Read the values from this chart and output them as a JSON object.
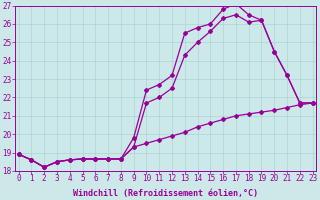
{
  "bg_color": "#cce8e8",
  "grid_color": "#aad4d4",
  "line_color": "#990099",
  "xlim_min": -0.3,
  "xlim_max": 23.3,
  "ylim_min": 18,
  "ylim_max": 27,
  "yticks": [
    18,
    19,
    20,
    21,
    22,
    23,
    24,
    25,
    26,
    27
  ],
  "xticks": [
    0,
    1,
    2,
    3,
    4,
    5,
    6,
    7,
    8,
    9,
    10,
    11,
    12,
    13,
    14,
    15,
    16,
    17,
    18,
    19,
    20,
    21,
    22,
    23
  ],
  "xlabel": "Windchill (Refroidissement éolien,°C)",
  "s1_x": [
    0,
    1,
    2,
    3,
    4,
    5,
    6,
    7,
    8,
    9,
    10,
    11,
    12,
    13,
    14,
    15,
    16,
    17,
    18,
    19,
    20,
    21,
    22,
    23
  ],
  "s1_y": [
    18.9,
    18.6,
    18.2,
    18.5,
    18.6,
    18.65,
    18.65,
    18.65,
    18.65,
    19.8,
    22.4,
    22.7,
    23.2,
    25.5,
    25.8,
    26.0,
    26.8,
    27.1,
    26.5,
    26.2,
    24.5,
    23.2,
    21.7,
    21.7
  ],
  "s2_x": [
    0,
    1,
    2,
    3,
    4,
    5,
    6,
    7,
    8,
    9,
    10,
    11,
    12,
    13,
    14,
    15,
    16,
    17,
    18,
    19,
    20,
    21,
    22,
    23
  ],
  "s2_y": [
    18.9,
    18.6,
    18.2,
    18.5,
    18.6,
    18.65,
    18.65,
    18.65,
    18.65,
    19.3,
    21.7,
    22.0,
    22.5,
    24.3,
    25.0,
    25.6,
    26.3,
    26.5,
    26.1,
    26.2,
    24.5,
    23.2,
    21.7,
    21.7
  ],
  "s3_x": [
    0,
    1,
    2,
    3,
    4,
    5,
    6,
    7,
    8,
    9,
    10,
    11,
    12,
    13,
    14,
    15,
    16,
    17,
    18,
    19,
    20,
    21,
    22,
    23
  ],
  "s3_y": [
    18.9,
    18.6,
    18.2,
    18.5,
    18.6,
    18.65,
    18.65,
    18.65,
    18.65,
    19.3,
    19.5,
    19.7,
    19.9,
    20.1,
    20.4,
    20.6,
    20.8,
    21.0,
    21.1,
    21.2,
    21.3,
    21.45,
    21.6,
    21.7
  ],
  "tick_fontsize": 5.5,
  "label_fontsize": 6.0,
  "marker_size": 2.0,
  "line_width": 0.9
}
